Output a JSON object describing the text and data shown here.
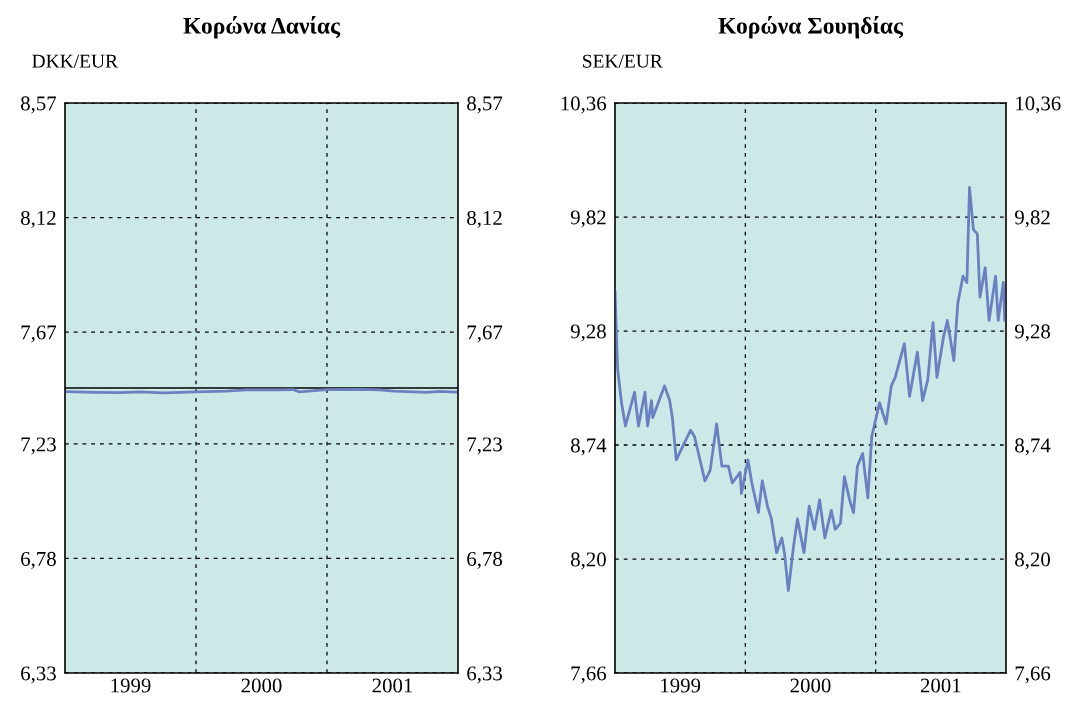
{
  "chart_data": [
    {
      "type": "line",
      "title": "Κορώνα Δανίας",
      "ylabel": "DKK/EUR",
      "x": [
        1999.01,
        1999.22,
        1999.42,
        1999.57,
        1999.75,
        2000.0,
        2000.23,
        2000.39,
        2000.62,
        2000.74,
        2000.79,
        2001.0,
        2001.25,
        2001.4,
        2001.51,
        2001.76,
        2001.86,
        2001.99
      ],
      "series": [
        {
          "color": "#6b80c0",
          "values": [
            7.436,
            7.433,
            7.432,
            7.435,
            7.431,
            7.435,
            7.438,
            7.443,
            7.443,
            7.444,
            7.435,
            7.444,
            7.445,
            7.443,
            7.438,
            7.433,
            7.437,
            7.434
          ]
        }
      ],
      "xlim": [
        1999,
        2002
      ],
      "xticks": [
        {
          "value": 1999.5,
          "label": "1999"
        },
        {
          "value": 2000,
          "label": null
        },
        {
          "value": 2000.5,
          "label": "2000"
        },
        {
          "value": 2001,
          "label": null
        },
        {
          "value": 2001.5,
          "label": "2001"
        }
      ],
      "ylim": [
        6.33,
        8.57
      ],
      "yticks": [
        {
          "value": 6.33,
          "label": "6,33"
        },
        {
          "value": 6.78,
          "label": "6,78"
        },
        {
          "value": 7.23,
          "label": "7,23"
        },
        {
          "value": 7.67,
          "label": "7,67"
        },
        {
          "value": 8.12,
          "label": "8,12"
        },
        {
          "value": 8.57,
          "label": "8,57"
        }
      ],
      "y2lim": [
        6.33,
        8.57
      ],
      "y2ticks": [
        {
          "value": 6.33,
          "label": "6,33"
        },
        {
          "value": 6.78,
          "label": "6,78"
        },
        {
          "value": 7.23,
          "label": "7,23"
        },
        {
          "value": 7.67,
          "label": "7,67"
        },
        {
          "value": 8.12,
          "label": "8,12"
        },
        {
          "value": 8.57,
          "label": "8,57"
        }
      ],
      "ref_lines": [
        {
          "axis": "y",
          "value": 7.45,
          "color": "#000000",
          "line_style": "solid"
        }
      ],
      "grid": true,
      "legend": false,
      "marker": "none",
      "line_style": "solid"
    },
    {
      "type": "line",
      "title": "Κορώνα Σουηδίας",
      "ylabel": "SEK/EUR",
      "x": [
        1999.0,
        1999.02,
        1999.05,
        1999.08,
        1999.15,
        1999.18,
        1999.23,
        1999.25,
        1999.28,
        1999.29,
        1999.38,
        1999.42,
        1999.44,
        1999.47,
        1999.51,
        1999.58,
        1999.61,
        1999.69,
        1999.73,
        1999.78,
        1999.82,
        1999.87,
        1999.9,
        1999.96,
        1999.97,
        2000.02,
        2000.05,
        2000.1,
        2000.13,
        2000.17,
        2000.2,
        2000.24,
        2000.28,
        2000.3,
        2000.33,
        2000.37,
        2000.4,
        2000.45,
        2000.49,
        2000.53,
        2000.57,
        2000.61,
        2000.66,
        2000.69,
        2000.73,
        2000.76,
        2000.8,
        2000.83,
        2000.86,
        2000.9,
        2000.94,
        2000.97,
        2001.03,
        2001.08,
        2001.12,
        2001.15,
        2001.22,
        2001.26,
        2001.32,
        2001.36,
        2001.4,
        2001.44,
        2001.47,
        2001.52,
        2001.55,
        2001.6,
        2001.63,
        2001.67,
        2001.7,
        2001.72,
        2001.75,
        2001.78,
        2001.8,
        2001.84,
        2001.87,
        2001.92,
        2001.94,
        2001.98,
        2001.99
      ],
      "series": [
        {
          "color": "#6b80c0",
          "values": [
            9.47,
            9.1,
            8.94,
            8.83,
            8.99,
            8.83,
            8.99,
            8.83,
            8.95,
            8.87,
            9.02,
            8.95,
            8.87,
            8.67,
            8.72,
            8.81,
            8.78,
            8.57,
            8.62,
            8.84,
            8.64,
            8.64,
            8.56,
            8.61,
            8.51,
            8.67,
            8.56,
            8.42,
            8.57,
            8.45,
            8.39,
            8.23,
            8.3,
            8.23,
            8.05,
            8.26,
            8.39,
            8.23,
            8.45,
            8.34,
            8.48,
            8.3,
            8.43,
            8.34,
            8.37,
            8.59,
            8.48,
            8.42,
            8.64,
            8.7,
            8.49,
            8.78,
            8.94,
            8.84,
            9.02,
            9.06,
            9.22,
            8.97,
            9.18,
            8.95,
            9.05,
            9.32,
            9.06,
            9.25,
            9.33,
            9.14,
            9.41,
            9.54,
            9.51,
            9.96,
            9.76,
            9.74,
            9.44,
            9.58,
            9.33,
            9.54,
            9.33,
            9.51,
            9.33
          ]
        }
      ],
      "xlim": [
        1999,
        2002
      ],
      "xticks": [
        {
          "value": 1999.5,
          "label": "1999"
        },
        {
          "value": 2000,
          "label": null
        },
        {
          "value": 2000.5,
          "label": "2000"
        },
        {
          "value": 2001,
          "label": null
        },
        {
          "value": 2001.5,
          "label": "2001"
        }
      ],
      "ylim": [
        7.66,
        10.36
      ],
      "yticks": [
        {
          "value": 7.66,
          "label": "7,66"
        },
        {
          "value": 8.2,
          "label": "8,20"
        },
        {
          "value": 8.74,
          "label": "8,74"
        },
        {
          "value": 9.28,
          "label": "9,28"
        },
        {
          "value": 9.82,
          "label": "9,82"
        },
        {
          "value": 10.36,
          "label": "10,36"
        }
      ],
      "y2lim": [
        7.66,
        10.36
      ],
      "y2ticks": [
        {
          "value": 7.66,
          "label": "7,66"
        },
        {
          "value": 8.2,
          "label": "8,20"
        },
        {
          "value": 8.74,
          "label": "8,74"
        },
        {
          "value": 9.28,
          "label": "9,28"
        },
        {
          "value": 9.82,
          "label": "9,82"
        },
        {
          "value": 10.36,
          "label": "10,36"
        }
      ],
      "grid": true,
      "legend": false,
      "marker": "none",
      "line_style": "solid"
    }
  ]
}
